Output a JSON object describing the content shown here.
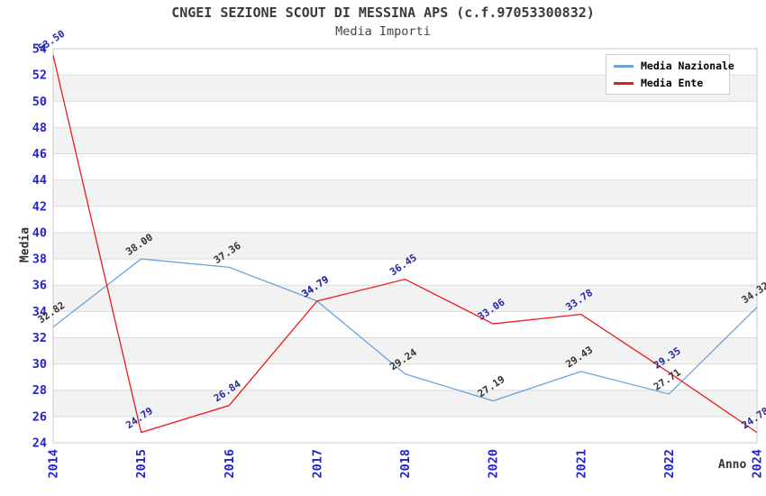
{
  "title": "CNGEI SEZIONE SCOUT DI MESSINA APS (c.f.97053300832)",
  "subtitle": "Media Importi",
  "chart_data": {
    "type": "line",
    "title": "CNGEI SEZIONE SCOUT DI MESSINA APS (c.f.97053300832)",
    "subtitle": "Media Importi",
    "xlabel": "Anno",
    "ylabel": "Media",
    "categories": [
      "2014",
      "2015",
      "2016",
      "2017",
      "2018",
      "2020",
      "2021",
      "2022",
      "2024"
    ],
    "series": [
      {
        "name": "Media Nazionale",
        "color": "#69a3dc",
        "label_color": "#333333",
        "values": [
          32.82,
          38.0,
          37.36,
          34.79,
          29.24,
          27.19,
          29.43,
          27.71,
          34.32
        ]
      },
      {
        "name": "Media Ente",
        "color": "#e81c1c",
        "label_color": "#2525a8",
        "values": [
          53.5,
          24.79,
          26.84,
          34.79,
          36.45,
          33.06,
          33.78,
          29.35,
          24.78
        ]
      }
    ],
    "ylim": [
      24,
      54
    ],
    "ytick_step": 2,
    "yticks": [
      24,
      26,
      28,
      30,
      32,
      34,
      36,
      38,
      40,
      42,
      44,
      46,
      48,
      50,
      52,
      54
    ],
    "grid": "horizontal",
    "band_fill": true,
    "legend_position": "top-right"
  },
  "colors": {
    "tick_label": "#2323cd",
    "band": "#f2f2f2",
    "gridline": "#dcdcdc",
    "plot_border": "#c8c8c8",
    "background": "#ffffff"
  }
}
